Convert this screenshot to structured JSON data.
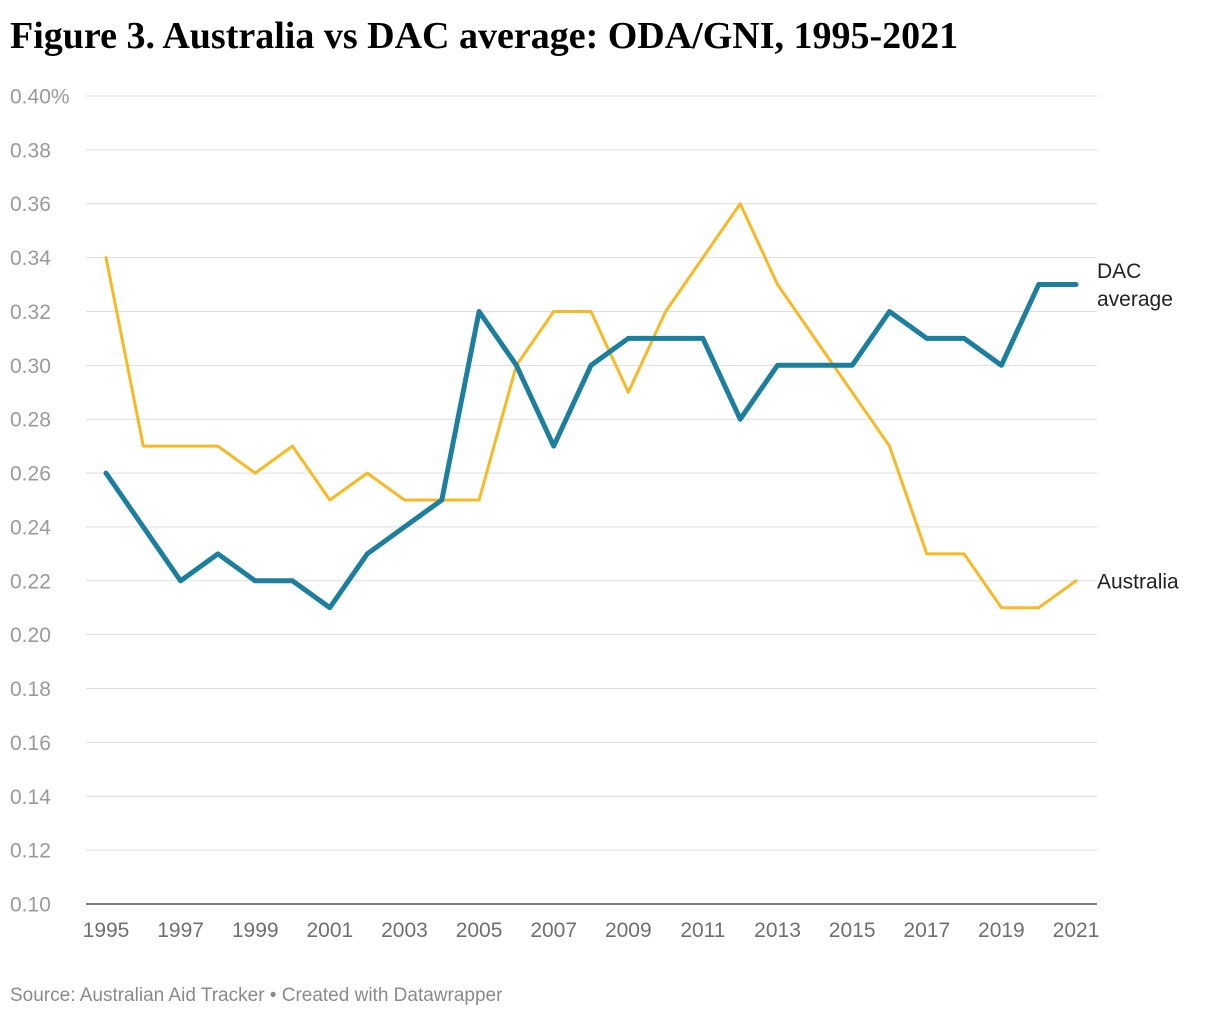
{
  "chart_data": {
    "type": "line",
    "title": "Figure 3. Australia vs DAC average: ODA/GNI, 1995-2021",
    "xlabel": "",
    "ylabel": "",
    "ylim": [
      0.1,
      0.4
    ],
    "xlim": [
      1995,
      2021
    ],
    "yticks": [
      0.1,
      0.12,
      0.14,
      0.16,
      0.18,
      0.2,
      0.22,
      0.24,
      0.26,
      0.28,
      0.3,
      0.32,
      0.34,
      0.36,
      0.38,
      0.4
    ],
    "ytick_labels": [
      "0.10",
      "0.12",
      "0.14",
      "0.16",
      "0.18",
      "0.20",
      "0.22",
      "0.24",
      "0.26",
      "0.28",
      "0.30",
      "0.32",
      "0.34",
      "0.36",
      "0.38",
      "0.40%"
    ],
    "xticks": [
      1995,
      1997,
      1999,
      2001,
      2003,
      2005,
      2007,
      2009,
      2011,
      2013,
      2015,
      2017,
      2019,
      2021
    ],
    "xtick_labels": [
      "1995",
      "1997",
      "1999",
      "2001",
      "2003",
      "2005",
      "2007",
      "2009",
      "2011",
      "2013",
      "2015",
      "2017",
      "2019",
      "2021"
    ],
    "grid": true,
    "legend": "direct labels at line ends",
    "x": [
      1995,
      1996,
      1997,
      1998,
      1999,
      2000,
      2001,
      2002,
      2003,
      2004,
      2005,
      2006,
      2007,
      2008,
      2009,
      2010,
      2011,
      2012,
      2013,
      2014,
      2015,
      2016,
      2017,
      2018,
      2019,
      2020,
      2021
    ],
    "series": [
      {
        "name": "Australia",
        "label_lines": [
          "Australia"
        ],
        "color": "#f7b924",
        "stroke": "thin",
        "values": [
          0.34,
          0.27,
          0.27,
          0.27,
          0.26,
          0.27,
          0.25,
          0.26,
          0.25,
          0.25,
          0.25,
          0.3,
          0.32,
          0.32,
          0.29,
          0.32,
          0.34,
          0.36,
          0.33,
          0.31,
          0.29,
          0.27,
          0.23,
          0.23,
          0.21,
          0.21,
          0.22
        ]
      },
      {
        "name": "DAC average",
        "label_lines": [
          "DAC",
          "average"
        ],
        "color": "#1c7f9e",
        "stroke": "thick",
        "values": [
          0.26,
          0.24,
          0.22,
          0.23,
          0.22,
          0.22,
          0.21,
          0.23,
          0.24,
          0.25,
          0.32,
          0.3,
          0.27,
          0.3,
          0.31,
          0.31,
          0.31,
          0.28,
          0.3,
          0.3,
          0.3,
          0.32,
          0.31,
          0.31,
          0.3,
          0.33,
          0.33
        ]
      }
    ],
    "source": "Source: Australian Aid Tracker • Created with Datawrapper"
  }
}
